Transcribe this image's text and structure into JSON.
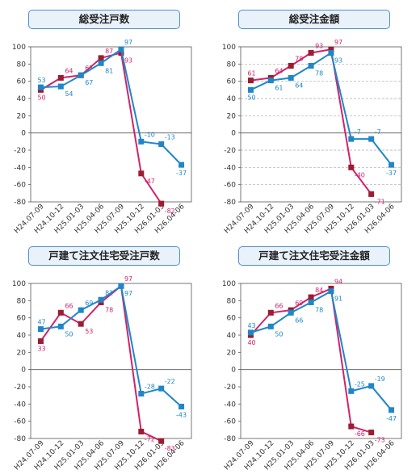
{
  "colors": {
    "blue": "#1f86c9",
    "magenta": "#d0236b",
    "marker_red": "#9c1c30",
    "title_bg": "#e9f1fa",
    "title_border": "#4d8fd0"
  },
  "chart_data": [
    {
      "type": "line",
      "title": "総受注戸数",
      "categories": [
        "H24.07-09",
        "H24.10-12",
        "H25.01-03",
        "H25.04-06",
        "H25.07-09",
        "H25.10-12",
        "H26.01-03",
        "H26.04-06"
      ],
      "ylim": [
        -80,
        100
      ],
      "yticks": [
        100,
        80,
        60,
        40,
        20,
        0,
        -20,
        -40,
        -60,
        -80
      ],
      "grid": false,
      "series": [
        {
          "color": "#d0236b",
          "values": [
            50,
            64,
            67,
            87,
            93,
            -47,
            -82,
            null
          ]
        },
        {
          "color": "#1f86c9",
          "values": [
            53,
            54,
            67,
            81,
            97,
            -10,
            -13,
            -37
          ]
        }
      ]
    },
    {
      "type": "line",
      "title": "総受注金額",
      "categories": [
        "H24.07-09",
        "H24.10-12",
        "H25.01-03",
        "H25.04-06",
        "H25.07-09",
        "H25.10-12",
        "H26.01-03",
        "H26.04-06"
      ],
      "ylim": [
        -80,
        100
      ],
      "yticks": [
        100,
        80,
        60,
        40,
        20,
        0,
        -20,
        -40,
        -60,
        -80
      ],
      "grid": true,
      "series": [
        {
          "color": "#d0236b",
          "values": [
            61,
            64,
            78,
            93,
            97,
            -40,
            -71,
            null
          ]
        },
        {
          "color": "#1f86c9",
          "values": [
            50,
            61,
            64,
            78,
            93,
            -7,
            -7,
            -37
          ]
        }
      ]
    },
    {
      "type": "line",
      "title": "戸建て注文住宅受注戸数",
      "categories": [
        "H24.07-09",
        "H24.10-12",
        "H25.01-03",
        "H25.04-06",
        "H25.07-09",
        "H25.10-12",
        "H26.01-03",
        "H26.04-06"
      ],
      "ylim": [
        -80,
        100
      ],
      "yticks": [
        100,
        80,
        60,
        40,
        20,
        0,
        -20,
        -40,
        -60,
        -80
      ],
      "grid": false,
      "series": [
        {
          "color": "#d0236b",
          "values": [
            33,
            66,
            53,
            78,
            97,
            -72,
            -83,
            null
          ]
        },
        {
          "color": "#1f86c9",
          "values": [
            47,
            50,
            69,
            81,
            97,
            -28,
            -22,
            -43
          ]
        }
      ]
    },
    {
      "type": "line",
      "title": "戸建て注文住宅受注金額",
      "categories": [
        "H24.07-09",
        "H24.10-12",
        "H25.01-03",
        "H25.04-06",
        "H25.07-09",
        "H25.10-12",
        "H26.01-03",
        "H26.04-06"
      ],
      "ylim": [
        -80,
        100
      ],
      "yticks": [
        100,
        80,
        60,
        40,
        20,
        0,
        -20,
        -40,
        -60,
        -80
      ],
      "grid": false,
      "series": [
        {
          "color": "#d0236b",
          "values": [
            40,
            66,
            69,
            84,
            94,
            -66,
            -73,
            null
          ]
        },
        {
          "color": "#1f86c9",
          "values": [
            43,
            50,
            66,
            78,
            91,
            -25,
            -19,
            -47
          ]
        }
      ]
    }
  ]
}
